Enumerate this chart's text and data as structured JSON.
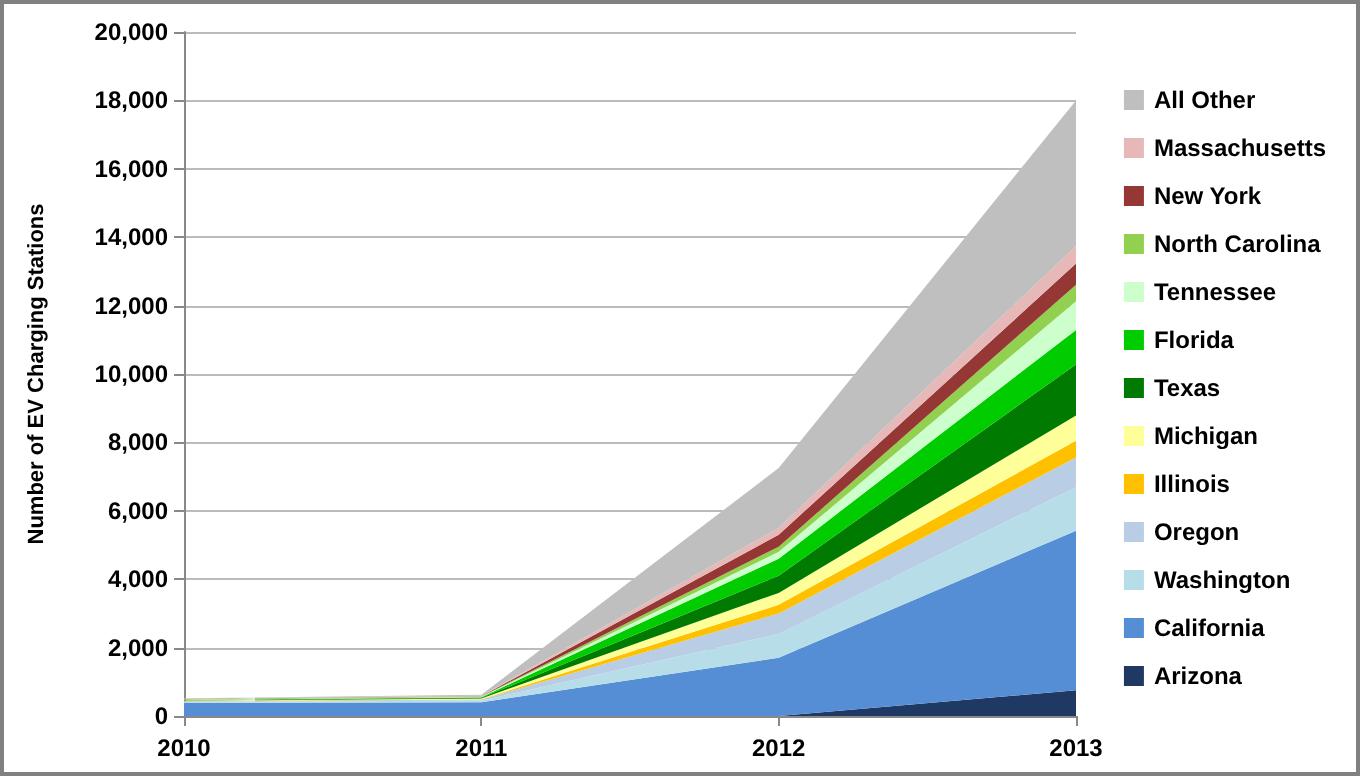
{
  "chart_data": {
    "type": "area",
    "stacked": true,
    "ylabel": "Number of EV Charging Stations",
    "categories": [
      "2010",
      "2011",
      "2012",
      "2013"
    ],
    "series": [
      {
        "name": "Arizona",
        "color": "#1f3864",
        "values": [
          0,
          0,
          0,
          750
        ]
      },
      {
        "name": "California",
        "color": "#558ed5",
        "values": [
          380,
          400,
          1700,
          4670
        ]
      },
      {
        "name": "Washington",
        "color": "#b7dee8",
        "values": [
          30,
          50,
          700,
          1270
        ]
      },
      {
        "name": "Oregon",
        "color": "#b9cde5",
        "values": [
          20,
          30,
          600,
          870
        ]
      },
      {
        "name": "Illinois",
        "color": "#ffc000",
        "values": [
          10,
          10,
          250,
          490
        ]
      },
      {
        "name": "Michigan",
        "color": "#ffff99",
        "values": [
          10,
          20,
          350,
          740
        ]
      },
      {
        "name": "Texas",
        "color": "#007a00",
        "values": [
          10,
          20,
          500,
          1490
        ]
      },
      {
        "name": "Florida",
        "color": "#00cc00",
        "values": [
          10,
          20,
          500,
          1010
        ]
      },
      {
        "name": "Tennessee",
        "color": "#ccffcc",
        "values": [
          10,
          10,
          200,
          840
        ]
      },
      {
        "name": "North Carolina",
        "color": "#92d050",
        "values": [
          10,
          10,
          150,
          480
        ]
      },
      {
        "name": "New York",
        "color": "#953735",
        "values": [
          10,
          10,
          350,
          620
        ]
      },
      {
        "name": "Massachusetts",
        "color": "#e6b9b8",
        "values": [
          10,
          10,
          200,
          510
        ]
      },
      {
        "name": "All Other",
        "color": "#bfbfbf",
        "values": [
          10,
          30,
          1750,
          4260
        ]
      }
    ],
    "ylim": [
      0,
      20000
    ],
    "yticks": [
      0,
      {
        "value": 2000,
        "label": "2,000"
      },
      {
        "value": 4000,
        "label": "4,000"
      },
      {
        "value": 6000,
        "label": "6,000"
      },
      {
        "value": 8000,
        "label": "8,000"
      },
      {
        "value": 10000,
        "label": "10,000"
      },
      {
        "value": 12000,
        "label": "12,000"
      },
      {
        "value": 14000,
        "label": "14,000"
      },
      {
        "value": 16000,
        "label": "16,000"
      },
      {
        "value": 18000,
        "label": "18,000"
      },
      {
        "value": 20000,
        "label": "20,000"
      }
    ],
    "grid": "y",
    "legend": "right",
    "marker": "none"
  }
}
